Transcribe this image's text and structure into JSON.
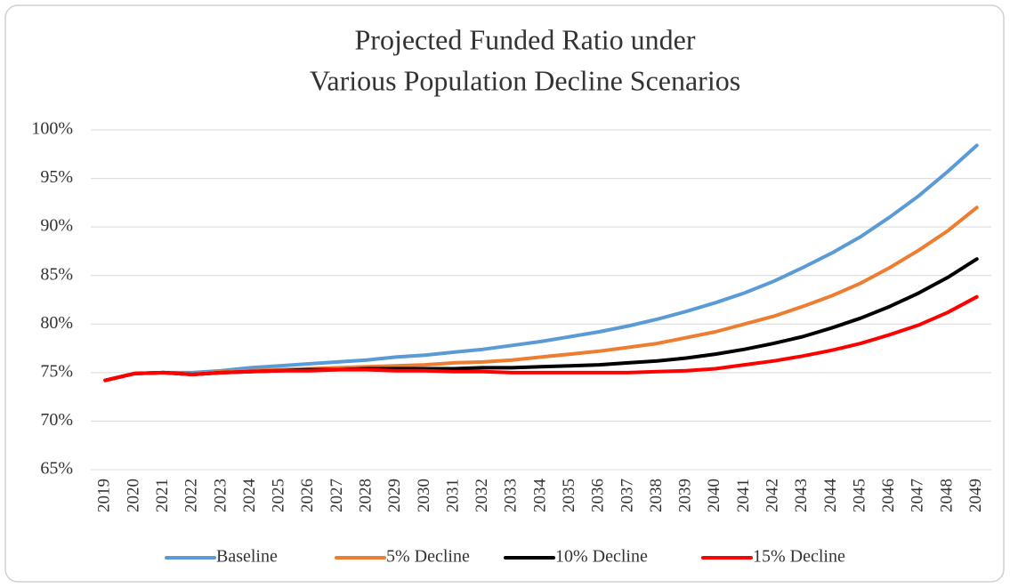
{
  "chart_data": {
    "type": "line",
    "title": [
      "Projected Funded Ratio under",
      "Various Population Decline Scenarios"
    ],
    "categories": [
      "2019",
      "2020",
      "2021",
      "2022",
      "2023",
      "2024",
      "2025",
      "2026",
      "2027",
      "2028",
      "2029",
      "2030",
      "2031",
      "2032",
      "2033",
      "2034",
      "2035",
      "2036",
      "2037",
      "2038",
      "2039",
      "2040",
      "2041",
      "2042",
      "2043",
      "2044",
      "2045",
      "2046",
      "2047",
      "2048",
      "2049"
    ],
    "ylim": [
      65,
      100
    ],
    "yticks": [
      {
        "value": 65,
        "label": "65%"
      },
      {
        "value": 70,
        "label": "70%"
      },
      {
        "value": 75,
        "label": "75%"
      },
      {
        "value": 80,
        "label": "80%"
      },
      {
        "value": 85,
        "label": "85%"
      },
      {
        "value": 90,
        "label": "90%"
      },
      {
        "value": 95,
        "label": "95%"
      },
      {
        "value": 100,
        "label": "100%"
      }
    ],
    "grid": true,
    "legend": "bottom",
    "series": [
      {
        "name": "Baseline",
        "color": "#5b9bd5",
        "values": [
          74.2,
          74.9,
          75.0,
          75.0,
          75.2,
          75.5,
          75.7,
          75.9,
          76.1,
          76.3,
          76.6,
          76.8,
          77.1,
          77.4,
          77.8,
          78.2,
          78.7,
          79.2,
          79.8,
          80.5,
          81.3,
          82.2,
          83.2,
          84.4,
          85.8,
          87.3,
          89.0,
          91.0,
          93.2,
          95.7,
          98.4
        ]
      },
      {
        "name": "5% Decline",
        "color": "#ed7d31",
        "values": [
          74.2,
          74.9,
          75.0,
          74.8,
          75.1,
          75.2,
          75.3,
          75.4,
          75.5,
          75.6,
          75.7,
          75.8,
          76.0,
          76.1,
          76.3,
          76.6,
          76.9,
          77.2,
          77.6,
          78.0,
          78.6,
          79.2,
          80.0,
          80.8,
          81.8,
          82.9,
          84.2,
          85.8,
          87.6,
          89.6,
          92.0
        ]
      },
      {
        "name": "10% Decline",
        "color": "#000000",
        "values": [
          74.2,
          74.9,
          75.0,
          74.8,
          75.0,
          75.1,
          75.2,
          75.3,
          75.3,
          75.4,
          75.4,
          75.4,
          75.4,
          75.5,
          75.5,
          75.6,
          75.7,
          75.8,
          76.0,
          76.2,
          76.5,
          76.9,
          77.4,
          78.0,
          78.7,
          79.6,
          80.6,
          81.8,
          83.2,
          84.8,
          86.7
        ]
      },
      {
        "name": "15% Decline",
        "color": "#ff0000",
        "values": [
          74.2,
          74.9,
          75.0,
          74.8,
          75.0,
          75.1,
          75.2,
          75.2,
          75.3,
          75.3,
          75.2,
          75.2,
          75.1,
          75.1,
          75.0,
          75.0,
          75.0,
          75.0,
          75.0,
          75.1,
          75.2,
          75.4,
          75.8,
          76.2,
          76.7,
          77.3,
          78.0,
          78.9,
          79.9,
          81.2,
          82.8
        ]
      }
    ]
  }
}
